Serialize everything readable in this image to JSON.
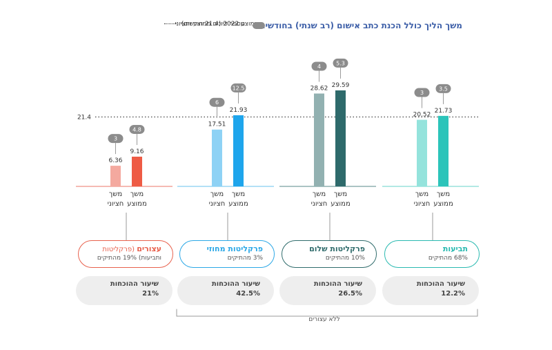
{
  "title": "משך הליך כולל הכנת כתב אישום (רב שנתי) בחודשים",
  "legend": {
    "pill_label": "מספר דיונים ממוצע וחציוני",
    "ref_label": "ממוצע 2022 (21.4 חודשים)"
  },
  "colors": {
    "title": "#3d5fa8",
    "pill": "#8c8c8c",
    "reference_line": "#333333",
    "bracket": "#999999"
  },
  "chart_data": {
    "type": "bar",
    "title": "משך הליך כולל הכנת כתב אישום (רב שנתי) בחודשים",
    "categories": [
      "עצורים",
      "פרקליטות מחוזי",
      "פרקליטות שלום",
      "תביעות"
    ],
    "series": [
      {
        "name": "משך חציוני",
        "values": [
          6.36,
          17.51,
          28.62,
          20.52
        ]
      },
      {
        "name": "משך ממוצע",
        "values": [
          9.16,
          21.93,
          29.59,
          21.73
        ]
      }
    ],
    "hearings": {
      "median": [
        3,
        6,
        4,
        3
      ],
      "mean": [
        4.8,
        12.5,
        5.3,
        3.5
      ]
    },
    "reference_line": {
      "value": 21.4,
      "label": "21.4"
    },
    "ylim": [
      0,
      40
    ],
    "grid": false,
    "bar_labels": {
      "median": "משך חציוני",
      "mean": "משך ממוצע"
    }
  },
  "groups": [
    {
      "name_main": "עצורים",
      "name_extra": "(פרקליטות",
      "share": "ותביעות) 19% מהתיקים",
      "rate_label": "שיעור ההוכחות",
      "rate": "21%",
      "color": "#e8604c",
      "median_color": "#f4a99f",
      "mean_color": "#ee5b45",
      "baseline_color": "#f2a49a"
    },
    {
      "name_main": "פרקליטות מחוזי",
      "name_extra": "",
      "share": "3% מהתיקים",
      "rate_label": "שיעור ההוכחות",
      "rate": "42.5%",
      "color": "#2aa7e6",
      "median_color": "#8ed2f5",
      "mean_color": "#1ea5ec",
      "baseline_color": "#9ad6f3"
    },
    {
      "name_main": "פרקליטות שלום",
      "name_extra": "",
      "share": "10% מהתיקים",
      "rate_label": "שיעור ההוכחות",
      "rate": "26.5%",
      "color": "#2f6b6b",
      "median_color": "#92b1b1",
      "mean_color": "#2e6a6b",
      "baseline_color": "#8fb0b0"
    },
    {
      "name_main": "תביעות",
      "name_extra": "",
      "share": "68% מהתיקים",
      "rate_label": "שיעור ההוכחות",
      "rate": "12.2%",
      "color": "#28b9b0",
      "median_color": "#94e3dc",
      "mean_color": "#2cc4ba",
      "baseline_color": "#98e2dc"
    }
  ],
  "bracket_label": "ללא עצורים"
}
